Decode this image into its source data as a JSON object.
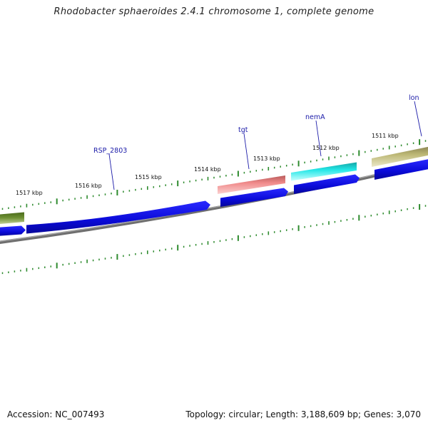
{
  "title": "Rhodobacter sphaeroides 2.4.1 chromosome 1, complete genome",
  "footer": {
    "accession": "Accession: NC_007493",
    "summary": "Topology: circular; Length: 3,188,609 bp; Genes: 3,070"
  },
  "scale_labels": [
    "1517 kbp",
    "1516 kbp",
    "1515 kbp",
    "1514 kbp",
    "1513 kbp",
    "1512 kbp",
    "1511 kbp"
  ],
  "gene_labels": [
    "RSP_2803",
    "tgt",
    "nemA",
    "lon"
  ],
  "colors": {
    "tick": "#2e8b2e",
    "backbone": "#7f7f7f",
    "cds": "#1010e0",
    "gene_label": "#1a1aa8",
    "feature_olive": "#5b7d2a",
    "feature_salmon": "#f08a8a",
    "feature_cyan": "#22e6e6",
    "feature_khaki": "#bdb876"
  }
}
